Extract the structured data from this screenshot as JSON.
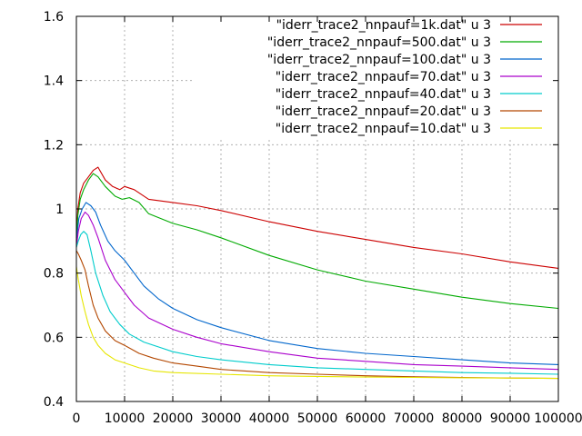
{
  "chart_data": {
    "type": "line",
    "title": "",
    "xlabel": "",
    "ylabel": "",
    "xlim": [
      0,
      100000
    ],
    "ylim": [
      0.4,
      1.6
    ],
    "grid": true,
    "legend_position": "top-right",
    "x_ticks": [
      0,
      10000,
      20000,
      30000,
      40000,
      50000,
      60000,
      70000,
      80000,
      90000,
      100000
    ],
    "x_tick_labels": [
      "0",
      "10000",
      "20000",
      "30000",
      "40000",
      "50000",
      "60000",
      "70000",
      "80000",
      "90000",
      "100000"
    ],
    "y_ticks": [
      0.4,
      0.6,
      0.8,
      1.0,
      1.2,
      1.4,
      1.6
    ],
    "y_tick_labels": [
      "0.4",
      "0.6",
      "0.8",
      "1",
      "1.2",
      "1.4",
      "1.6"
    ],
    "series": [
      {
        "name": "\"iderr_trace2_nnpauf=1k.dat\" u 3",
        "color": "#cc0000",
        "points": [
          [
            0,
            0.91
          ],
          [
            300,
            1.0
          ],
          [
            800,
            1.05
          ],
          [
            1500,
            1.08
          ],
          [
            2500,
            1.1
          ],
          [
            3500,
            1.12
          ],
          [
            4500,
            1.13
          ],
          [
            6000,
            1.09
          ],
          [
            7500,
            1.07
          ],
          [
            9000,
            1.06
          ],
          [
            10000,
            1.07
          ],
          [
            12000,
            1.06
          ],
          [
            15000,
            1.03
          ],
          [
            20000,
            1.02
          ],
          [
            25000,
            1.01
          ],
          [
            30000,
            0.995
          ],
          [
            40000,
            0.96
          ],
          [
            50000,
            0.93
          ],
          [
            60000,
            0.905
          ],
          [
            70000,
            0.88
          ],
          [
            80000,
            0.86
          ],
          [
            90000,
            0.835
          ],
          [
            100000,
            0.815
          ]
        ]
      },
      {
        "name": "\"iderr_trace2_nnpauf=500.dat\" u 3",
        "color": "#00aa00",
        "points": [
          [
            0,
            0.9
          ],
          [
            300,
            0.98
          ],
          [
            800,
            1.03
          ],
          [
            1500,
            1.06
          ],
          [
            2500,
            1.09
          ],
          [
            3500,
            1.11
          ],
          [
            4500,
            1.1
          ],
          [
            6000,
            1.07
          ],
          [
            8000,
            1.04
          ],
          [
            9500,
            1.03
          ],
          [
            11000,
            1.035
          ],
          [
            13000,
            1.02
          ],
          [
            15000,
            0.985
          ],
          [
            20000,
            0.955
          ],
          [
            25000,
            0.935
          ],
          [
            30000,
            0.91
          ],
          [
            40000,
            0.855
          ],
          [
            50000,
            0.81
          ],
          [
            60000,
            0.775
          ],
          [
            70000,
            0.75
          ],
          [
            80000,
            0.725
          ],
          [
            90000,
            0.705
          ],
          [
            100000,
            0.69
          ]
        ]
      },
      {
        "name": "\"iderr_trace2_nnpauf=100.dat\" u 3",
        "color": "#0066cc",
        "points": [
          [
            0,
            0.9
          ],
          [
            500,
            0.97
          ],
          [
            1200,
            1.0
          ],
          [
            2000,
            1.02
          ],
          [
            3000,
            1.01
          ],
          [
            4000,
            0.99
          ],
          [
            5000,
            0.95
          ],
          [
            6500,
            0.9
          ],
          [
            8000,
            0.87
          ],
          [
            10000,
            0.84
          ],
          [
            12000,
            0.8
          ],
          [
            14000,
            0.76
          ],
          [
            17000,
            0.72
          ],
          [
            20000,
            0.69
          ],
          [
            25000,
            0.655
          ],
          [
            30000,
            0.63
          ],
          [
            40000,
            0.59
          ],
          [
            50000,
            0.565
          ],
          [
            60000,
            0.55
          ],
          [
            70000,
            0.54
          ],
          [
            80000,
            0.53
          ],
          [
            90000,
            0.52
          ],
          [
            100000,
            0.515
          ]
        ]
      },
      {
        "name": "\"iderr_trace2_nnpauf=70.dat\" u 3",
        "color": "#aa00cc",
        "points": [
          [
            0,
            0.88
          ],
          [
            400,
            0.93
          ],
          [
            1000,
            0.97
          ],
          [
            1800,
            0.99
          ],
          [
            2500,
            0.98
          ],
          [
            3500,
            0.95
          ],
          [
            4500,
            0.91
          ],
          [
            6000,
            0.84
          ],
          [
            8000,
            0.78
          ],
          [
            10000,
            0.74
          ],
          [
            12000,
            0.7
          ],
          [
            15000,
            0.66
          ],
          [
            20000,
            0.625
          ],
          [
            25000,
            0.6
          ],
          [
            30000,
            0.58
          ],
          [
            40000,
            0.555
          ],
          [
            50000,
            0.535
          ],
          [
            60000,
            0.525
          ],
          [
            70000,
            0.515
          ],
          [
            80000,
            0.51
          ],
          [
            90000,
            0.505
          ],
          [
            100000,
            0.5
          ]
        ]
      },
      {
        "name": "\"iderr_trace2_nnpauf=40.dat\" u 3",
        "color": "#00cccc",
        "points": [
          [
            0,
            0.88
          ],
          [
            400,
            0.9
          ],
          [
            900,
            0.92
          ],
          [
            1500,
            0.93
          ],
          [
            2200,
            0.92
          ],
          [
            3000,
            0.87
          ],
          [
            4000,
            0.8
          ],
          [
            5500,
            0.73
          ],
          [
            7000,
            0.68
          ],
          [
            9000,
            0.64
          ],
          [
            11000,
            0.61
          ],
          [
            14000,
            0.585
          ],
          [
            17000,
            0.57
          ],
          [
            20000,
            0.555
          ],
          [
            25000,
            0.54
          ],
          [
            30000,
            0.53
          ],
          [
            40000,
            0.515
          ],
          [
            50000,
            0.505
          ],
          [
            60000,
            0.5
          ],
          [
            70000,
            0.495
          ],
          [
            80000,
            0.49
          ],
          [
            90000,
            0.488
          ],
          [
            100000,
            0.485
          ]
        ]
      },
      {
        "name": "\"iderr_trace2_nnpauf=20.dat\" u 3",
        "color": "#b34700",
        "points": [
          [
            0,
            0.87
          ],
          [
            400,
            0.86
          ],
          [
            1000,
            0.84
          ],
          [
            1800,
            0.81
          ],
          [
            2500,
            0.76
          ],
          [
            3500,
            0.7
          ],
          [
            4500,
            0.66
          ],
          [
            6000,
            0.62
          ],
          [
            8000,
            0.59
          ],
          [
            10000,
            0.575
          ],
          [
            13000,
            0.55
          ],
          [
            16000,
            0.535
          ],
          [
            20000,
            0.52
          ],
          [
            25000,
            0.51
          ],
          [
            30000,
            0.5
          ],
          [
            40000,
            0.49
          ],
          [
            50000,
            0.485
          ],
          [
            60000,
            0.48
          ],
          [
            70000,
            0.477
          ],
          [
            80000,
            0.475
          ],
          [
            90000,
            0.473
          ],
          [
            100000,
            0.472
          ]
        ]
      },
      {
        "name": "\"iderr_trace2_nnpauf=10.dat\" u 3",
        "color": "#e6e600",
        "points": [
          [
            0,
            0.82
          ],
          [
            400,
            0.78
          ],
          [
            1000,
            0.73
          ],
          [
            1800,
            0.68
          ],
          [
            2500,
            0.64
          ],
          [
            3500,
            0.6
          ],
          [
            4500,
            0.575
          ],
          [
            6000,
            0.55
          ],
          [
            8000,
            0.53
          ],
          [
            10000,
            0.52
          ],
          [
            13000,
            0.505
          ],
          [
            16000,
            0.495
          ],
          [
            20000,
            0.49
          ],
          [
            30000,
            0.485
          ],
          [
            40000,
            0.48
          ],
          [
            50000,
            0.478
          ],
          [
            60000,
            0.476
          ],
          [
            70000,
            0.475
          ],
          [
            80000,
            0.474
          ],
          [
            90000,
            0.473
          ],
          [
            100000,
            0.472
          ]
        ]
      }
    ]
  }
}
